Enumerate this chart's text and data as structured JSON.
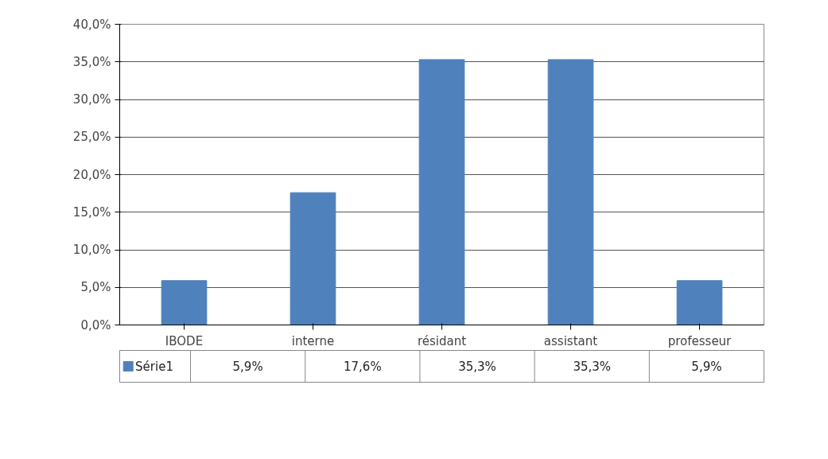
{
  "chart_data": {
    "type": "bar",
    "categories": [
      "IBODE",
      "interne",
      "résidant",
      "assistant",
      "professeur"
    ],
    "series": [
      {
        "name": "Série1",
        "color": "#4f81bd",
        "values": [
          5.9,
          17.6,
          35.3,
          35.3,
          5.9
        ],
        "value_labels": [
          "5,9%",
          "17,6%",
          "35,3%",
          "35,3%",
          "5,9%"
        ]
      }
    ],
    "ylim": [
      0,
      40
    ],
    "yticks": [
      {
        "value": 0,
        "label": "0,0%"
      },
      {
        "value": 5,
        "label": "5,0%"
      },
      {
        "value": 10,
        "label": "10,0%"
      },
      {
        "value": 15,
        "label": "15,0%"
      },
      {
        "value": 20,
        "label": "20,0%"
      },
      {
        "value": 25,
        "label": "25,0%"
      },
      {
        "value": 30,
        "label": "30,0%"
      },
      {
        "value": 35,
        "label": "35,0%"
      },
      {
        "value": 40,
        "label": "40,0%"
      }
    ],
    "grid": "y",
    "legend": "bottom"
  }
}
